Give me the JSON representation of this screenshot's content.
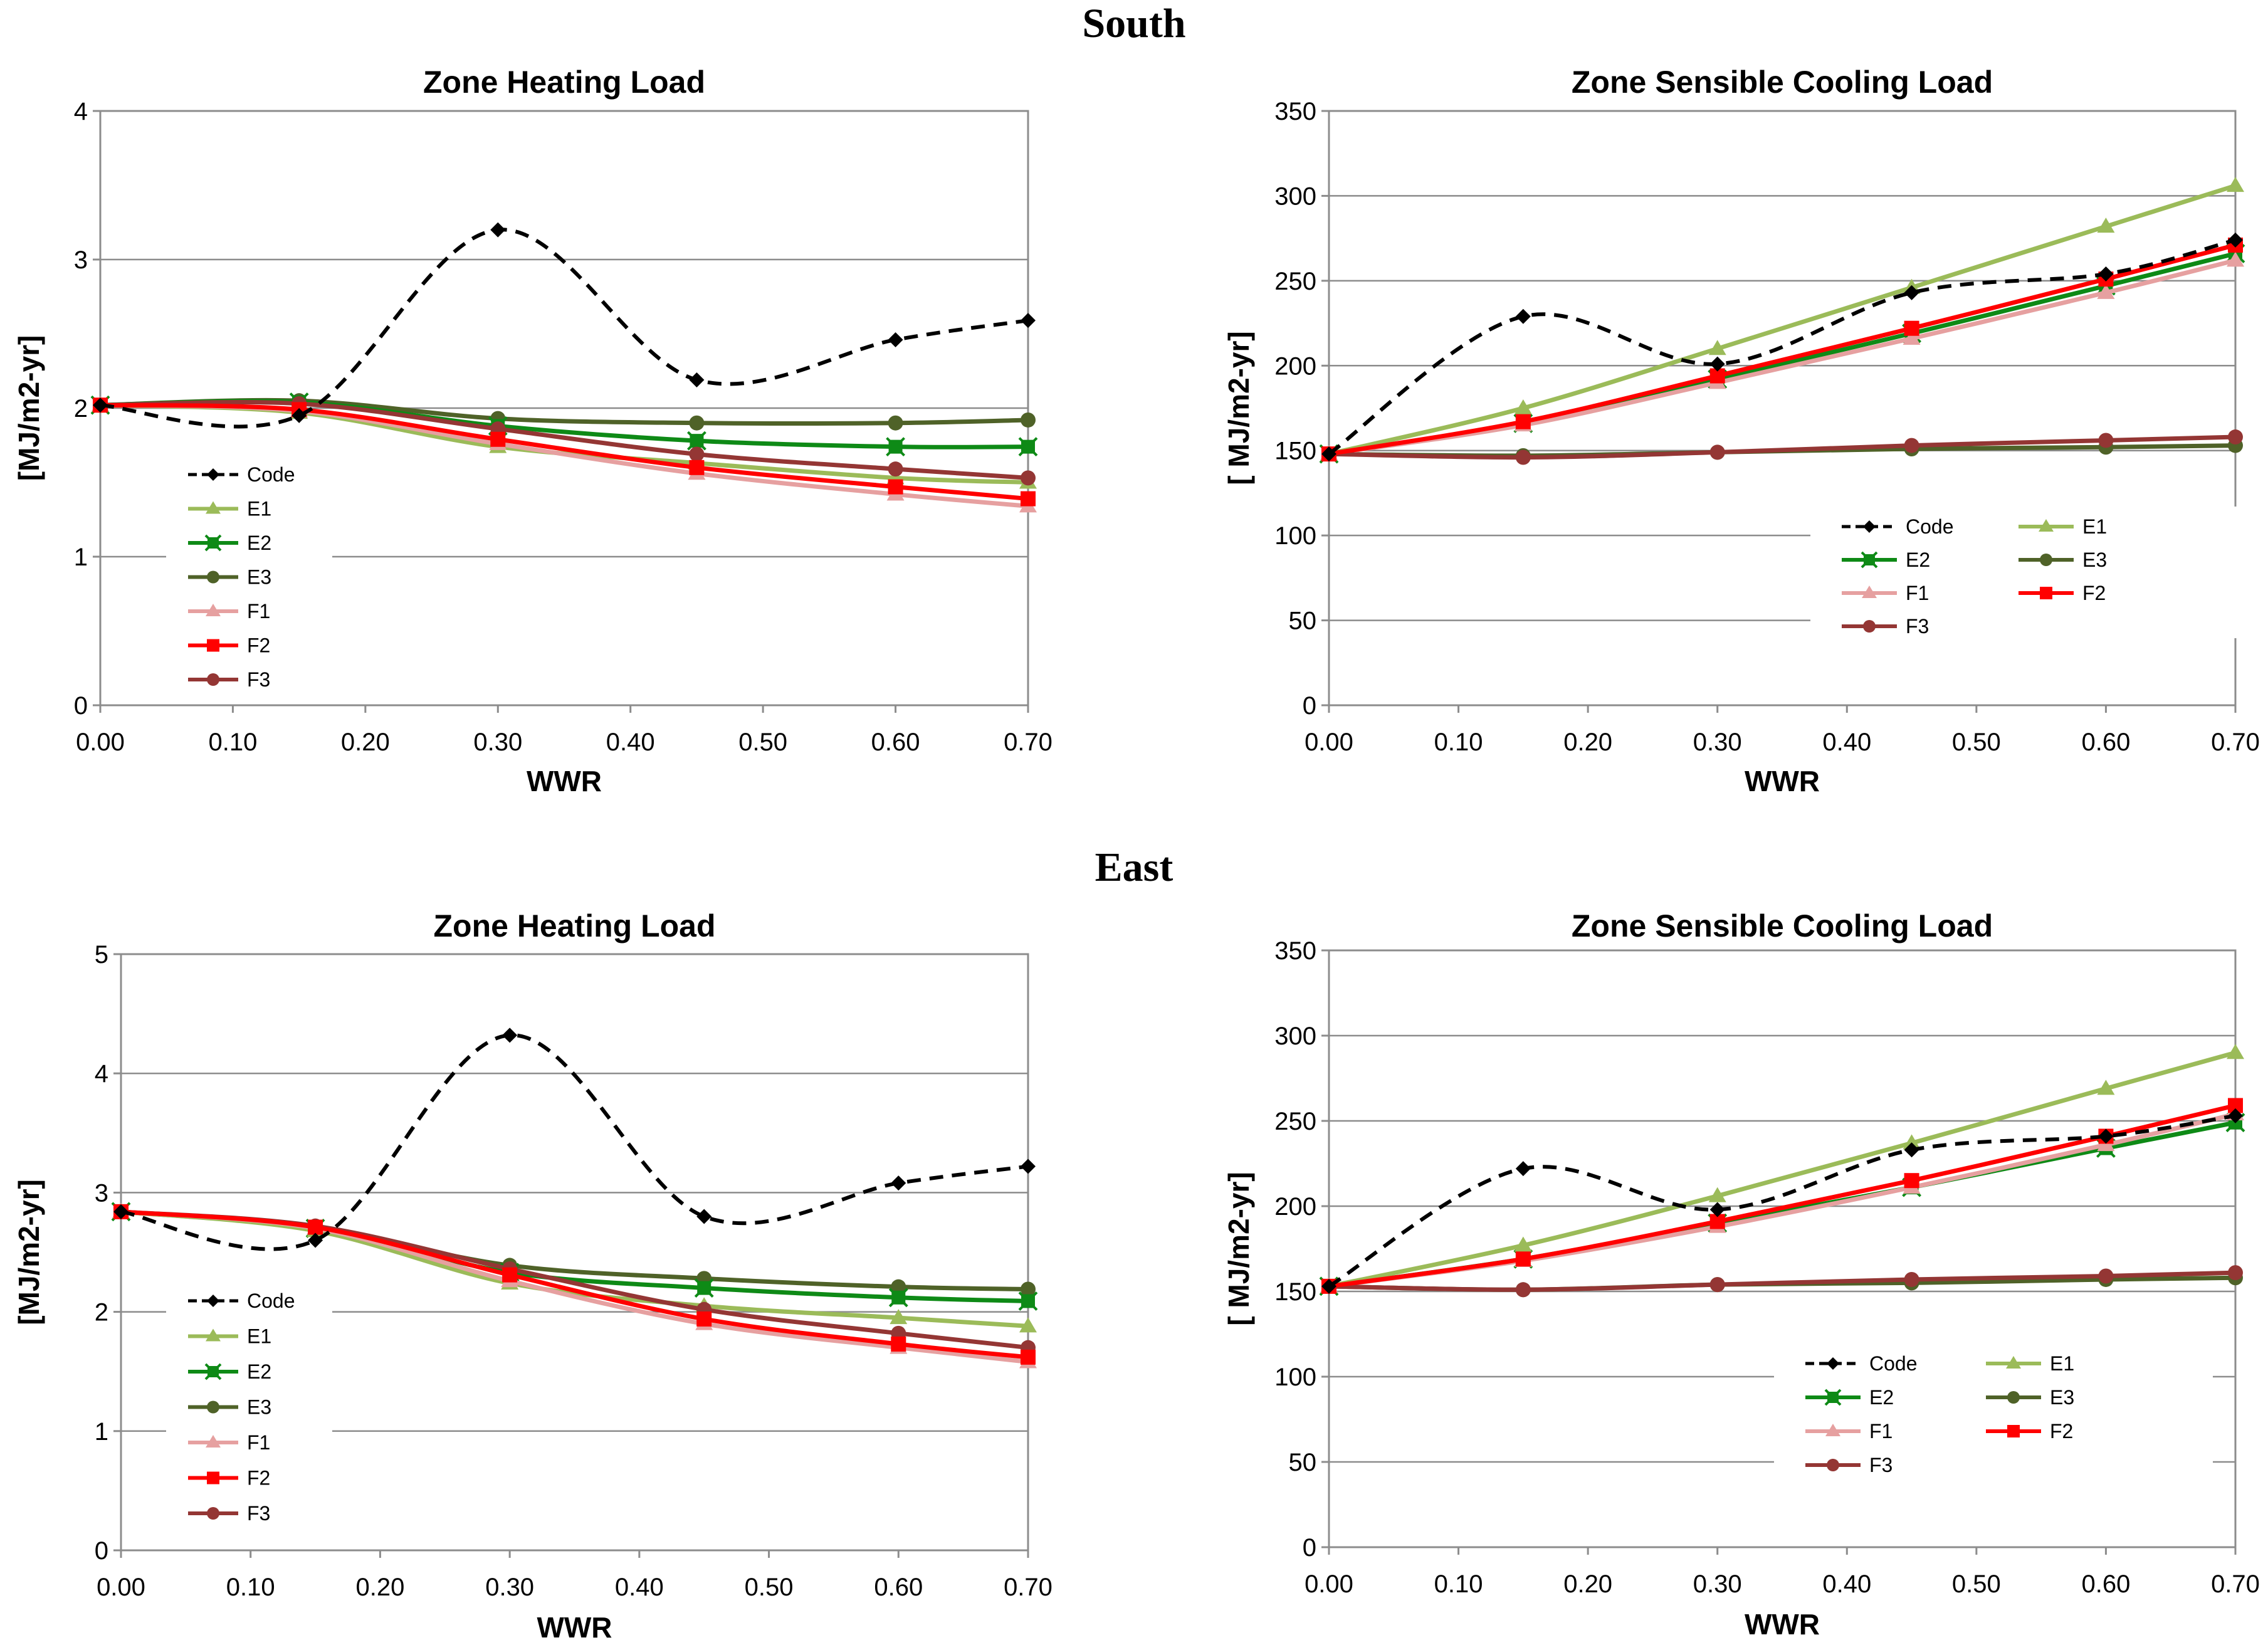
{
  "sections": {
    "south": "South",
    "east": "East"
  },
  "series_styles": {
    "Code": {
      "color": "#000000",
      "marker": "diamond",
      "dashed": true
    },
    "E1": {
      "color": "#9BBB59",
      "marker": "triangle",
      "dashed": false
    },
    "E2": {
      "color": "#0E8A16",
      "marker": "square-x",
      "dashed": false
    },
    "E3": {
      "color": "#4F6228",
      "marker": "circle",
      "dashed": false
    },
    "F1": {
      "color": "#E6A0A0",
      "marker": "triangle",
      "dashed": false
    },
    "F2": {
      "color": "#FF0000",
      "marker": "square",
      "dashed": false
    },
    "F3": {
      "color": "#943634",
      "marker": "circle",
      "dashed": false
    }
  },
  "chart_data": [
    {
      "id": "south-heating",
      "section": "South",
      "type": "line",
      "title": "Zone Heating Load",
      "xlabel": "WWR",
      "ylabel": "[MJ/m2-yr]",
      "xlim": [
        0,
        0.7
      ],
      "ylim": [
        0,
        4
      ],
      "yticks": [
        0,
        1,
        2,
        3,
        4
      ],
      "ytick_labels": [
        "0",
        "1",
        "2",
        "3",
        "4"
      ],
      "xticks": [
        0,
        0.1,
        0.2,
        0.3,
        0.4,
        0.5,
        0.6,
        0.7
      ],
      "xtick_labels": [
        "0.00",
        "0.10",
        "0.20",
        "0.30",
        "0.40",
        "0.50",
        "0.60",
        "0.70"
      ],
      "legend": {
        "placement": "left-center",
        "columns": 1
      },
      "x": [
        0,
        0.15,
        0.3,
        0.45,
        0.6,
        0.7
      ],
      "series": [
        {
          "name": "Code",
          "values": [
            2.02,
            1.95,
            3.2,
            2.19,
            2.46,
            2.59
          ]
        },
        {
          "name": "E1",
          "values": [
            2.02,
            1.97,
            1.74,
            1.63,
            1.53,
            1.5
          ]
        },
        {
          "name": "E2",
          "values": [
            2.02,
            2.04,
            1.88,
            1.78,
            1.74,
            1.74
          ]
        },
        {
          "name": "E3",
          "values": [
            2.02,
            2.05,
            1.93,
            1.9,
            1.9,
            1.92
          ]
        },
        {
          "name": "F1",
          "values": [
            2.02,
            1.98,
            1.76,
            1.56,
            1.42,
            1.34
          ]
        },
        {
          "name": "F2",
          "values": [
            2.02,
            1.99,
            1.79,
            1.6,
            1.47,
            1.39
          ]
        },
        {
          "name": "F3",
          "values": [
            2.02,
            2.03,
            1.86,
            1.69,
            1.59,
            1.53
          ]
        }
      ]
    },
    {
      "id": "south-cooling",
      "section": "South",
      "type": "line",
      "title": "Zone Sensible Cooling Load",
      "xlabel": "WWR",
      "ylabel": "[ MJ/m2-yr]",
      "xlim": [
        0,
        0.7
      ],
      "ylim": [
        0,
        350
      ],
      "yticks": [
        0,
        50,
        100,
        150,
        200,
        250,
        300,
        350
      ],
      "ytick_labels": [
        "0",
        "50",
        "100",
        "150",
        "200",
        "250",
        "300",
        "350"
      ],
      "xticks": [
        0,
        0.1,
        0.2,
        0.3,
        0.4,
        0.5,
        0.6,
        0.7
      ],
      "xtick_labels": [
        "0.00",
        "0.10",
        "0.20",
        "0.30",
        "0.40",
        "0.50",
        "0.60",
        "0.70"
      ],
      "legend": {
        "placement": "bottom-right",
        "columns": 2
      },
      "x": [
        0,
        0.15,
        0.3,
        0.45,
        0.6,
        0.7
      ],
      "series": [
        {
          "name": "Code",
          "values": [
            148,
            229,
            201,
            243,
            254,
            274
          ]
        },
        {
          "name": "E1",
          "values": [
            148,
            175,
            210,
            246,
            282,
            306
          ]
        },
        {
          "name": "E2",
          "values": [
            148,
            166,
            192,
            219,
            247,
            266
          ]
        },
        {
          "name": "E3",
          "values": [
            148,
            147,
            149,
            151,
            152,
            153
          ]
        },
        {
          "name": "F1",
          "values": [
            148,
            165,
            190,
            216,
            243,
            262
          ]
        },
        {
          "name": "F2",
          "values": [
            148,
            167,
            194,
            222,
            251,
            271
          ]
        },
        {
          "name": "F3",
          "values": [
            148,
            146,
            149,
            153,
            156,
            158
          ]
        }
      ]
    },
    {
      "id": "east-heating",
      "section": "East",
      "type": "line",
      "title": "Zone Heating Load",
      "xlabel": "WWR",
      "ylabel": "[MJ/m2-yr]",
      "xlim": [
        0,
        0.7
      ],
      "ylim": [
        0,
        5
      ],
      "yticks": [
        0,
        1,
        2,
        3,
        4,
        5
      ],
      "ytick_labels": [
        "0",
        "1",
        "2",
        "3",
        "4",
        "5"
      ],
      "xticks": [
        0,
        0.1,
        0.2,
        0.3,
        0.4,
        0.5,
        0.6,
        0.7
      ],
      "xtick_labels": [
        "0.00",
        "0.10",
        "0.20",
        "0.30",
        "0.40",
        "0.50",
        "0.60",
        "0.70"
      ],
      "legend": {
        "placement": "left-center",
        "columns": 1
      },
      "x": [
        0,
        0.15,
        0.3,
        0.45,
        0.6,
        0.7
      ],
      "series": [
        {
          "name": "Code",
          "values": [
            2.84,
            2.6,
            4.32,
            2.8,
            3.08,
            3.22
          ]
        },
        {
          "name": "E1",
          "values": [
            2.84,
            2.68,
            2.24,
            2.05,
            1.95,
            1.88
          ]
        },
        {
          "name": "E2",
          "values": [
            2.84,
            2.7,
            2.33,
            2.2,
            2.12,
            2.09
          ]
        },
        {
          "name": "E3",
          "values": [
            2.84,
            2.7,
            2.39,
            2.28,
            2.21,
            2.19
          ]
        },
        {
          "name": "F1",
          "values": [
            2.84,
            2.7,
            2.26,
            1.9,
            1.7,
            1.58
          ]
        },
        {
          "name": "F2",
          "values": [
            2.84,
            2.71,
            2.31,
            1.94,
            1.73,
            1.62
          ]
        },
        {
          "name": "F3",
          "values": [
            2.84,
            2.72,
            2.36,
            2.02,
            1.82,
            1.7
          ]
        }
      ]
    },
    {
      "id": "east-cooling",
      "section": "East",
      "type": "line",
      "title": "Zone Sensible Cooling Load",
      "xlabel": "WWR",
      "ylabel": "[ MJ/m2-yr]",
      "xlim": [
        0,
        0.7
      ],
      "ylim": [
        0,
        350
      ],
      "yticks": [
        0,
        50,
        100,
        150,
        200,
        250,
        300,
        350
      ],
      "ytick_labels": [
        "0",
        "50",
        "100",
        "150",
        "200",
        "250",
        "300",
        "350"
      ],
      "xticks": [
        0,
        0.1,
        0.2,
        0.3,
        0.4,
        0.5,
        0.6,
        0.7
      ],
      "xtick_labels": [
        "0.00",
        "0.10",
        "0.20",
        "0.30",
        "0.40",
        "0.50",
        "0.60",
        "0.70"
      ],
      "legend": {
        "placement": "bottom-right",
        "columns": 2
      },
      "x": [
        0,
        0.15,
        0.3,
        0.45,
        0.6,
        0.7
      ],
      "series": [
        {
          "name": "Code",
          "values": [
            153,
            222,
            198,
            233,
            241,
            253
          ]
        },
        {
          "name": "E1",
          "values": [
            153,
            177,
            206,
            237,
            269,
            290
          ]
        },
        {
          "name": "E2",
          "values": [
            153,
            169,
            190,
            211,
            234,
            249
          ]
        },
        {
          "name": "E3",
          "values": [
            153,
            151,
            154,
            155,
            157,
            158
          ]
        },
        {
          "name": "F1",
          "values": [
            153,
            168,
            188,
            211,
            236,
            254
          ]
        },
        {
          "name": "F2",
          "values": [
            153,
            169,
            191,
            215,
            241,
            259
          ]
        },
        {
          "name": "F3",
          "values": [
            153,
            151,
            154,
            157,
            159,
            161
          ]
        }
      ]
    }
  ]
}
